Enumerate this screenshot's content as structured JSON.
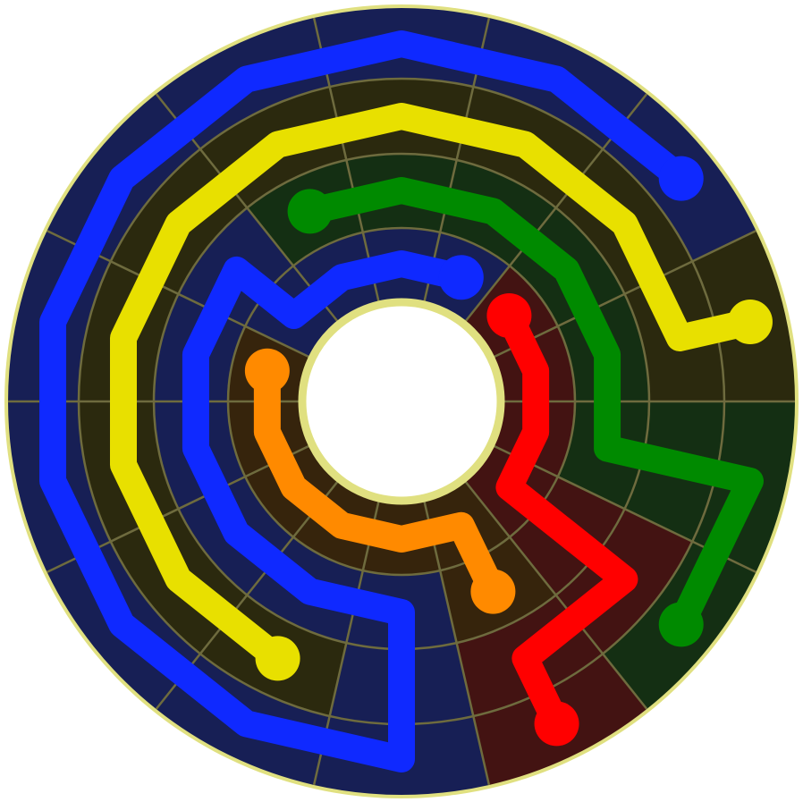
{
  "game": {
    "type": "circular flow puzzle",
    "rings": 4,
    "sectors": 14,
    "colors": {
      "border": "#e0e080",
      "grid_line": "#6e6b3e"
    },
    "flows": [
      {
        "name": "blue",
        "color": "#0f29ff",
        "cell_tint": "#171f55",
        "cells": [
          [
            4,
            2
          ],
          [
            4,
            1
          ],
          [
            4,
            0
          ],
          [
            4,
            13
          ],
          [
            4,
            12
          ],
          [
            4,
            11
          ],
          [
            4,
            10
          ],
          [
            4,
            9
          ],
          [
            4,
            8
          ],
          [
            4,
            7
          ],
          [
            3,
            7
          ],
          [
            2,
            7
          ],
          [
            2,
            8
          ],
          [
            2,
            9
          ],
          [
            2,
            10
          ],
          [
            2,
            11
          ],
          [
            2,
            12
          ],
          [
            1,
            12
          ],
          [
            1,
            13
          ],
          [
            1,
            0
          ],
          [
            1,
            1
          ]
        ]
      },
      {
        "name": "yellow",
        "color": "#e8e000",
        "cell_tint": "#2b290e",
        "cells": [
          [
            4,
            3
          ],
          [
            3,
            3
          ],
          [
            3,
            2
          ],
          [
            3,
            1
          ],
          [
            3,
            0
          ],
          [
            3,
            13
          ],
          [
            3,
            12
          ],
          [
            3,
            11
          ],
          [
            3,
            10
          ],
          [
            3,
            9
          ],
          [
            3,
            8
          ]
        ]
      },
      {
        "name": "green",
        "color": "#008a00",
        "cell_tint": "#142f13",
        "cells": [
          [
            2,
            13
          ],
          [
            2,
            0
          ],
          [
            2,
            1
          ],
          [
            2,
            2
          ],
          [
            2,
            3
          ],
          [
            2,
            4
          ],
          [
            3,
            4
          ],
          [
            4,
            4
          ],
          [
            4,
            5
          ]
        ]
      },
      {
        "name": "red",
        "color": "#ff0000",
        "cell_tint": "#431312",
        "cells": [
          [
            1,
            2
          ],
          [
            1,
            3
          ],
          [
            1,
            4
          ],
          [
            1,
            5
          ],
          [
            2,
            5
          ],
          [
            3,
            5
          ],
          [
            3,
            6
          ],
          [
            4,
            6
          ]
        ]
      },
      {
        "name": "orange",
        "color": "#ff8a00",
        "cell_tint": "#36240c",
        "cells": [
          [
            1,
            11
          ],
          [
            1,
            10
          ],
          [
            1,
            9
          ],
          [
            1,
            8
          ],
          [
            1,
            7
          ],
          [
            1,
            6
          ],
          [
            2,
            6
          ]
        ]
      }
    ]
  }
}
